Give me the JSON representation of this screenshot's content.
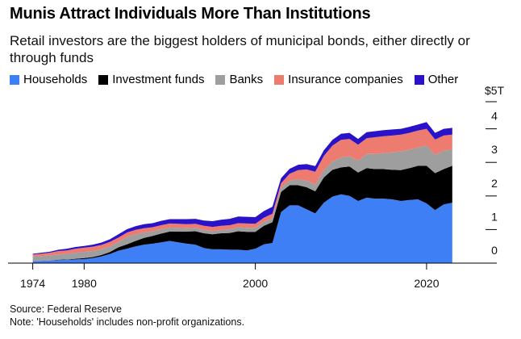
{
  "header": {
    "title": "Munis Attract Individuals More Than Institutions",
    "subtitle": "Retail investors are the biggest holders of municipal bonds, either directly or through funds"
  },
  "footer": {
    "source": "Source: Federal Reserve",
    "note": "Note: 'Households' includes non-profit organizations."
  },
  "chart_data": {
    "type": "area",
    "stacked": true,
    "x": [
      1974,
      1975,
      1976,
      1977,
      1978,
      1979,
      1980,
      1981,
      1982,
      1983,
      1984,
      1985,
      1986,
      1987,
      1988,
      1989,
      1990,
      1991,
      1992,
      1993,
      1994,
      1995,
      1996,
      1997,
      1998,
      1999,
      2000,
      2001,
      2002,
      2003,
      2004,
      2005,
      2006,
      2007,
      2008,
      2009,
      2010,
      2011,
      2012,
      2013,
      2014,
      2015,
      2016,
      2017,
      2018,
      2019,
      2020,
      2021,
      2022,
      2023
    ],
    "series": [
      {
        "name": "Households",
        "color": "#3f7ff5",
        "values": [
          0.06,
          0.07,
          0.08,
          0.09,
          0.1,
          0.11,
          0.12,
          0.15,
          0.2,
          0.27,
          0.37,
          0.43,
          0.5,
          0.55,
          0.58,
          0.62,
          0.66,
          0.62,
          0.58,
          0.55,
          0.45,
          0.41,
          0.41,
          0.4,
          0.4,
          0.38,
          0.43,
          0.56,
          0.6,
          1.52,
          1.72,
          1.72,
          1.6,
          1.48,
          1.8,
          1.98,
          2.05,
          2.0,
          1.85,
          1.95,
          1.92,
          1.92,
          1.9,
          1.85,
          1.88,
          1.9,
          1.78,
          1.58,
          1.75,
          1.8
        ]
      },
      {
        "name": "Investment funds",
        "color": "#000000",
        "values": [
          0.0,
          0.0,
          0.0,
          0.01,
          0.01,
          0.02,
          0.03,
          0.03,
          0.04,
          0.06,
          0.1,
          0.13,
          0.16,
          0.2,
          0.23,
          0.26,
          0.28,
          0.32,
          0.36,
          0.4,
          0.44,
          0.45,
          0.48,
          0.5,
          0.55,
          0.55,
          0.5,
          0.55,
          0.62,
          0.6,
          0.6,
          0.6,
          0.66,
          0.66,
          0.75,
          0.8,
          0.8,
          0.88,
          0.85,
          0.88,
          0.88,
          0.88,
          0.88,
          0.92,
          0.95,
          1.0,
          1.12,
          1.1,
          1.05,
          1.1
        ]
      },
      {
        "name": "Banks",
        "color": "#9e9e9e",
        "values": [
          0.14,
          0.14,
          0.15,
          0.16,
          0.17,
          0.18,
          0.18,
          0.18,
          0.17,
          0.17,
          0.16,
          0.22,
          0.2,
          0.16,
          0.14,
          0.13,
          0.12,
          0.11,
          0.1,
          0.1,
          0.1,
          0.1,
          0.1,
          0.11,
          0.12,
          0.12,
          0.12,
          0.12,
          0.12,
          0.13,
          0.14,
          0.17,
          0.2,
          0.2,
          0.22,
          0.25,
          0.3,
          0.3,
          0.35,
          0.42,
          0.45,
          0.48,
          0.52,
          0.56,
          0.55,
          0.55,
          0.6,
          0.55,
          0.55,
          0.48
        ]
      },
      {
        "name": "Insurance companies",
        "color": "#ee7b6f",
        "values": [
          0.06,
          0.07,
          0.08,
          0.1,
          0.1,
          0.12,
          0.13,
          0.13,
          0.13,
          0.13,
          0.13,
          0.13,
          0.13,
          0.13,
          0.12,
          0.12,
          0.12,
          0.12,
          0.12,
          0.12,
          0.12,
          0.12,
          0.12,
          0.12,
          0.12,
          0.13,
          0.12,
          0.12,
          0.13,
          0.13,
          0.2,
          0.28,
          0.33,
          0.38,
          0.42,
          0.47,
          0.52,
          0.52,
          0.48,
          0.47,
          0.5,
          0.5,
          0.5,
          0.5,
          0.5,
          0.5,
          0.5,
          0.45,
          0.45,
          0.45
        ]
      },
      {
        "name": "Other",
        "color": "#2a12c9",
        "values": [
          0.02,
          0.03,
          0.03,
          0.04,
          0.05,
          0.05,
          0.05,
          0.06,
          0.07,
          0.08,
          0.1,
          0.1,
          0.11,
          0.12,
          0.12,
          0.13,
          0.13,
          0.14,
          0.15,
          0.15,
          0.16,
          0.17,
          0.18,
          0.19,
          0.2,
          0.2,
          0.2,
          0.2,
          0.21,
          0.15,
          0.15,
          0.16,
          0.16,
          0.17,
          0.17,
          0.17,
          0.18,
          0.18,
          0.17,
          0.18,
          0.18,
          0.18,
          0.18,
          0.17,
          0.18,
          0.18,
          0.2,
          0.2,
          0.2,
          0.2
        ]
      }
    ],
    "ylim": [
      0,
      5
    ],
    "y_ticks": [
      0,
      1,
      2,
      3,
      4
    ],
    "y_tick_labels": [
      "0",
      "1",
      "2",
      "3",
      "4"
    ],
    "y_top_label": "$5T",
    "x_ticks": [
      1974,
      1980,
      2000,
      2020
    ],
    "x_tick_labels": [
      "1974",
      "1980",
      "2000",
      "2020"
    ],
    "grid": false,
    "legend_position": "top-left"
  }
}
